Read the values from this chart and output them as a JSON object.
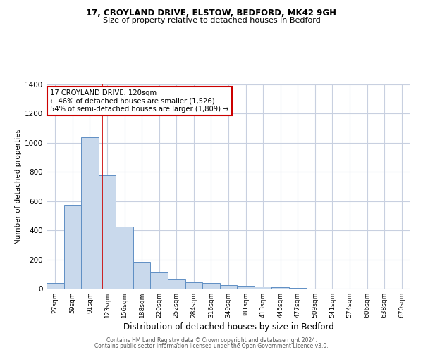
{
  "title1": "17, CROYLAND DRIVE, ELSTOW, BEDFORD, MK42 9GH",
  "title2": "Size of property relative to detached houses in Bedford",
  "xlabel": "Distribution of detached houses by size in Bedford",
  "ylabel": "Number of detached properties",
  "categories": [
    "27sqm",
    "59sqm",
    "91sqm",
    "123sqm",
    "156sqm",
    "188sqm",
    "220sqm",
    "252sqm",
    "284sqm",
    "316sqm",
    "349sqm",
    "381sqm",
    "413sqm",
    "445sqm",
    "477sqm",
    "509sqm",
    "541sqm",
    "574sqm",
    "606sqm",
    "638sqm",
    "670sqm"
  ],
  "values": [
    40,
    575,
    1040,
    775,
    425,
    185,
    110,
    65,
    45,
    40,
    25,
    20,
    15,
    10,
    5,
    0,
    0,
    0,
    0,
    0,
    0
  ],
  "bar_color": "#c9d9ec",
  "bar_edge_color": "#5f8fc4",
  "background_color": "#ffffff",
  "grid_color": "#c8d0e0",
  "annotation_line1": "17 CROYLAND DRIVE: 120sqm",
  "annotation_line2": "← 46% of detached houses are smaller (1,526)",
  "annotation_line3": "54% of semi-detached houses are larger (1,809) →",
  "annotation_box_color": "#ffffff",
  "annotation_box_edge": "#cc0000",
  "vline_color": "#cc0000",
  "vline_x_index": 2.73,
  "ylim": [
    0,
    1400
  ],
  "yticks": [
    0,
    200,
    400,
    600,
    800,
    1000,
    1200,
    1400
  ],
  "footer1": "Contains HM Land Registry data © Crown copyright and database right 2024.",
  "footer2": "Contains public sector information licensed under the Open Government Licence v3.0."
}
